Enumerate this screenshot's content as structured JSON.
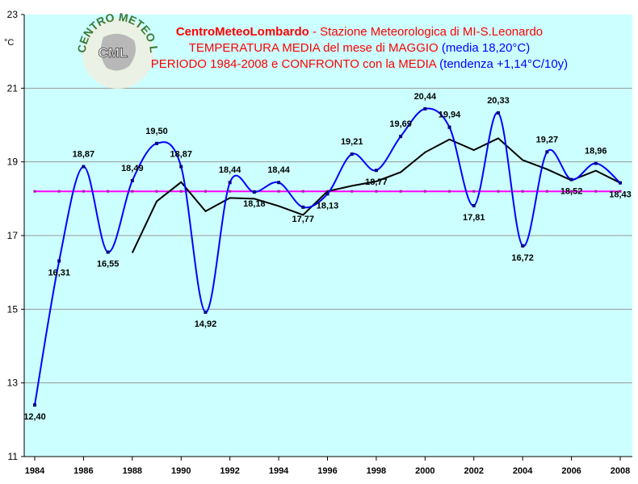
{
  "chart_data": {
    "type": "line",
    "title_parts": {
      "line1_brand": "CentroMeteoLombardo",
      "line1_rest": " - Stazione Meteorologica di MI-S.Leonardo",
      "line2_red": "TEMPERATURA MEDIA del mese di MAGGIO ",
      "line2_blue": "(media 18,20°C)",
      "line3_red": "PERIODO 1984-2008 e CONFRONTO con la MEDIA ",
      "line3_blue": "(tendenza +1,14°C/10y)"
    },
    "ylabel": "°C",
    "xlim": [
      1984,
      2008
    ],
    "ylim": [
      11,
      23
    ],
    "x_ticks": [
      "1984",
      "1986",
      "1988",
      "1990",
      "1992",
      "1994",
      "1996",
      "1998",
      "2000",
      "2002",
      "2004",
      "2006",
      "2008"
    ],
    "y_ticks": [
      "11",
      "13",
      "15",
      "17",
      "19",
      "21",
      "23"
    ],
    "grid": "horizontal",
    "logo_text": {
      "ring": "CENTRO METEO LOMBARDO",
      "center": "CML"
    },
    "series": [
      {
        "color": "#0000ff",
        "x": [
          1984,
          1985,
          1986,
          1987,
          1988,
          1989,
          1990,
          1991,
          1992,
          1993,
          1994,
          1995,
          1996,
          1997,
          1998,
          1999,
          2000,
          2001,
          2002,
          2003,
          2004,
          2005,
          2006,
          2007,
          2008
        ],
        "values": [
          12.4,
          16.31,
          18.87,
          16.55,
          18.49,
          19.5,
          18.87,
          14.92,
          18.44,
          18.18,
          18.44,
          17.77,
          18.13,
          19.21,
          18.77,
          19.69,
          20.44,
          19.94,
          17.81,
          20.33,
          16.72,
          19.27,
          18.52,
          18.96,
          18.43
        ],
        "labels": [
          "12,40",
          "16,31",
          "18,87",
          "16,55",
          "18,49",
          "19,50",
          "18,87",
          "14,92",
          "18,44",
          "18,18",
          "18,44",
          "17,77",
          "18,13",
          "19,21",
          "18,77",
          "19,69",
          "20,44",
          "19,94",
          "17,81",
          "20,33",
          "16,72",
          "19,27",
          "18,52",
          "18,96",
          "18,43"
        ]
      },
      {
        "color": "#000000",
        "x": [
          1988,
          1989,
          1990,
          1991,
          1992,
          1993,
          1994,
          1995,
          1996,
          1997,
          1998,
          1999,
          2000,
          2001,
          2002,
          2003,
          2004,
          2005,
          2006,
          2007,
          2008
        ],
        "values": [
          16.53,
          17.93,
          18.45,
          17.66,
          18.02,
          18.0,
          17.8,
          17.56,
          18.2,
          18.35,
          18.47,
          18.72,
          19.26,
          19.61,
          19.32,
          19.64,
          19.05,
          18.8,
          18.5,
          18.76,
          18.43
        ]
      },
      {
        "color": "#ff00ff",
        "x": [
          1984,
          1985,
          1986,
          1987,
          1988,
          1989,
          1990,
          1991,
          1992,
          1993,
          1994,
          1995,
          1996,
          1997,
          1998,
          1999,
          2000,
          2001,
          2002,
          2003,
          2004,
          2005,
          2006,
          2007,
          2008
        ],
        "values": [
          18.2,
          18.2,
          18.2,
          18.2,
          18.2,
          18.2,
          18.2,
          18.2,
          18.2,
          18.2,
          18.2,
          18.2,
          18.2,
          18.2,
          18.2,
          18.2,
          18.2,
          18.2,
          18.2,
          18.2,
          18.2,
          18.2,
          18.2,
          18.2,
          18.2
        ]
      }
    ]
  }
}
